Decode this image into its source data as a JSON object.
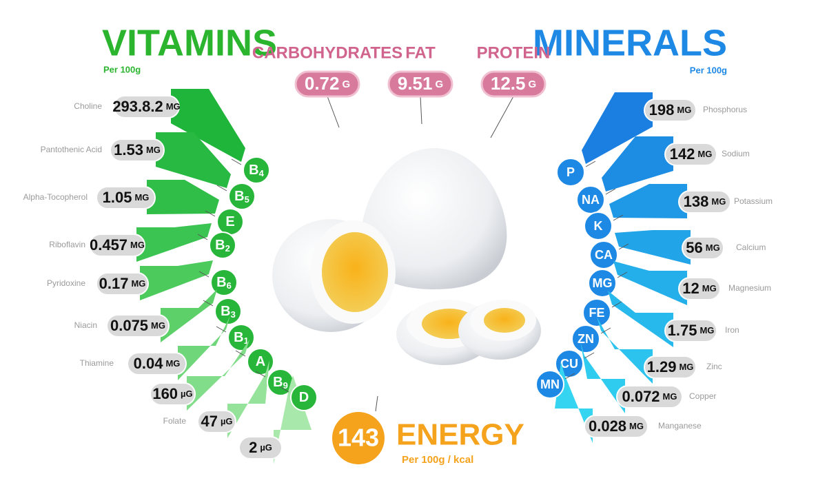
{
  "vitamins": {
    "title": "VITAMINS",
    "subtitle": "Per 100g",
    "items": [
      {
        "name": "Choline",
        "amount": "293.8.2",
        "unit": "MG",
        "letter": "B",
        "sub": "4"
      },
      {
        "name": "Pantothenic Acid",
        "amount": "1.53",
        "unit": "MG",
        "letter": "B",
        "sub": "5"
      },
      {
        "name": "Alpha-Tocopherol",
        "amount": "1.05",
        "unit": "MG",
        "letter": "E",
        "sub": null
      },
      {
        "name": "Riboflavin",
        "amount": "0.457",
        "unit": "MG",
        "letter": "B",
        "sub": "2"
      },
      {
        "name": "Pyridoxine",
        "amount": "0.17",
        "unit": "MG",
        "letter": "B",
        "sub": "6"
      },
      {
        "name": "Niacin",
        "amount": "0.075",
        "unit": "MG",
        "letter": "B",
        "sub": "3"
      },
      {
        "name": "Thiamine",
        "amount": "0.04",
        "unit": "MG",
        "letter": "B",
        "sub": "1"
      },
      {
        "name": null,
        "amount": "160",
        "unit": "µG",
        "letter": "A",
        "sub": null
      },
      {
        "name": "Folate",
        "amount": "47",
        "unit": "µG",
        "letter": "B",
        "sub": "9"
      },
      {
        "name": null,
        "amount": "2",
        "unit": "µG",
        "letter": "D",
        "sub": null
      }
    ]
  },
  "minerals": {
    "title": "MINERALS",
    "subtitle": "Per 100g",
    "items": [
      {
        "name": "Phosphorus",
        "amount": "198",
        "unit": "MG",
        "symbol": "P"
      },
      {
        "name": "Sodium",
        "amount": "142",
        "unit": "MG",
        "symbol": "NA"
      },
      {
        "name": "Potassium",
        "amount": "138",
        "unit": "MG",
        "symbol": "K"
      },
      {
        "name": "Calcium",
        "amount": "56",
        "unit": "MG",
        "symbol": "CA"
      },
      {
        "name": "Magnesium",
        "amount": "12",
        "unit": "MG",
        "symbol": "MG"
      },
      {
        "name": "Iron",
        "amount": "1.75",
        "unit": "MG",
        "symbol": "FE"
      },
      {
        "name": "Zinc",
        "amount": "1.29",
        "unit": "MG",
        "symbol": "ZN"
      },
      {
        "name": "Copper",
        "amount": "0.072",
        "unit": "MG",
        "symbol": "CU"
      },
      {
        "name": "Manganese",
        "amount": "0.028",
        "unit": "MG",
        "symbol": "MN"
      }
    ]
  },
  "macros": [
    {
      "name": "CARBOHYDRATES",
      "amount": "0.72",
      "unit": "G"
    },
    {
      "name": "FAT",
      "amount": "9.51",
      "unit": "G"
    },
    {
      "name": "PROTEIN",
      "amount": "12.5",
      "unit": "G"
    }
  ],
  "energy": {
    "value": "143",
    "label": "ENERGY",
    "subtitle": "Per 100g / kcal"
  }
}
